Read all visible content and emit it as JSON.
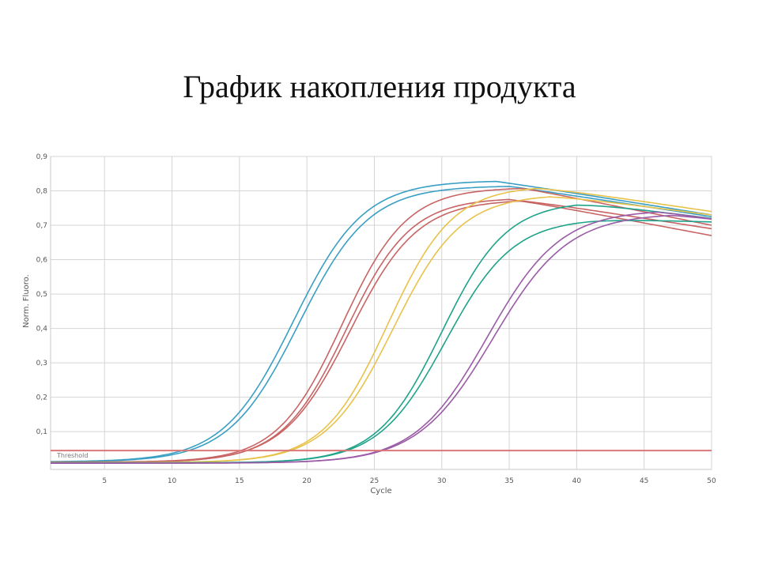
{
  "slide": {
    "title": "График накопления продукта"
  },
  "chart_data": {
    "type": "line",
    "xlabel": "Cycle",
    "ylabel": "Norm. Fluoro.",
    "xlim": [
      1,
      50
    ],
    "ylim": [
      -0.01,
      0.9
    ],
    "xticks": [
      5,
      10,
      15,
      20,
      25,
      30,
      35,
      40,
      45,
      50
    ],
    "yticks": [
      0.1,
      0.2,
      0.3,
      0.4,
      0.5,
      0.6,
      0.7,
      0.8,
      0.9
    ],
    "ytick_labels": [
      "0,1",
      "0,2",
      "0,3",
      "0,4",
      "0,5",
      "0,6",
      "0,7",
      "0,8",
      "0,9"
    ],
    "grid": true,
    "threshold": {
      "label": "Threshold",
      "value": 0.045,
      "color": "#d9777a"
    },
    "colors": {
      "blue": "#3a9fc4",
      "red": "#c86464",
      "yellow": "#e8c24a",
      "green": "#1ea38a",
      "purple": "#9a5ca6"
    },
    "series": [
      {
        "color": "#3a9fc4",
        "ct_mid": 19.0,
        "slope": 2.6,
        "plateau": 0.83,
        "peak": 34,
        "end": 0.73
      },
      {
        "color": "#3a9fc4",
        "ct_mid": 19.4,
        "slope": 2.6,
        "plateau": 0.815,
        "peak": 35,
        "end": 0.725
      },
      {
        "color": "#c86464",
        "ct_mid": 22.6,
        "slope": 2.4,
        "plateau": 0.81,
        "peak": 36,
        "end": 0.7
      },
      {
        "color": "#c86464",
        "ct_mid": 22.9,
        "slope": 2.4,
        "plateau": 0.78,
        "peak": 35,
        "end": 0.67
      },
      {
        "color": "#c86464",
        "ct_mid": 23.2,
        "slope": 2.5,
        "plateau": 0.775,
        "peak": 36,
        "end": 0.69
      },
      {
        "color": "#e8c24a",
        "ct_mid": 26.0,
        "slope": 2.4,
        "plateau": 0.815,
        "peak": 37,
        "end": 0.74
      },
      {
        "color": "#e8c24a",
        "ct_mid": 26.4,
        "slope": 2.5,
        "plateau": 0.79,
        "peak": 38,
        "end": 0.73
      },
      {
        "color": "#1ea38a",
        "ct_mid": 30.0,
        "slope": 2.4,
        "plateau": 0.77,
        "peak": 40,
        "end": 0.72
      },
      {
        "color": "#1ea38a",
        "ct_mid": 30.3,
        "slope": 2.5,
        "plateau": 0.72,
        "peak": 41,
        "end": 0.71
      },
      {
        "color": "#9a5ca6",
        "ct_mid": 33.4,
        "slope": 2.7,
        "plateau": 0.745,
        "peak": 46,
        "end": 0.72
      },
      {
        "color": "#9a5ca6",
        "ct_mid": 33.8,
        "slope": 2.8,
        "plateau": 0.735,
        "peak": 47,
        "end": 0.72
      }
    ]
  }
}
